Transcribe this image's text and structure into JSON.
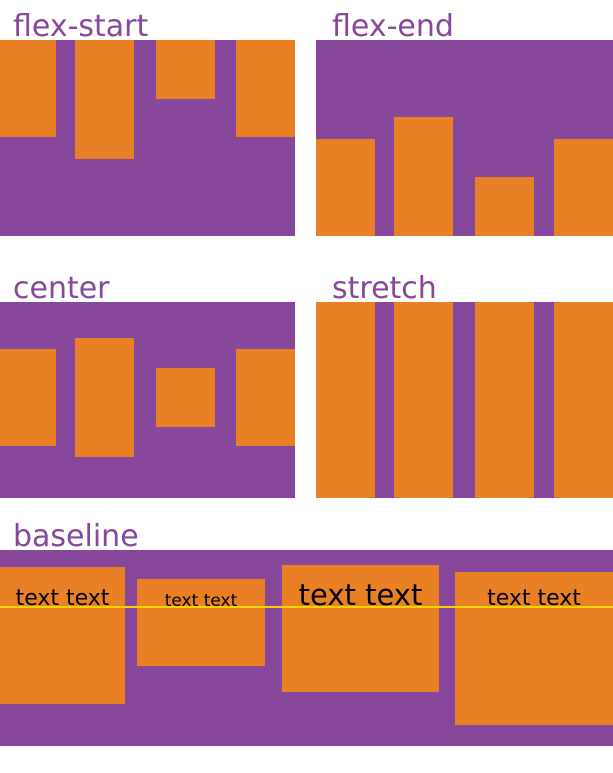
{
  "titles": {
    "flex_start": "flex-start",
    "flex_end": "flex-end",
    "center": "center",
    "stretch": "stretch",
    "baseline": "baseline"
  },
  "baseline_texts": [
    "text text",
    "text text",
    "text text",
    "text text"
  ],
  "colors": {
    "container": "#87479a",
    "item": "#e98124",
    "baseline_line": "#f2d400"
  }
}
